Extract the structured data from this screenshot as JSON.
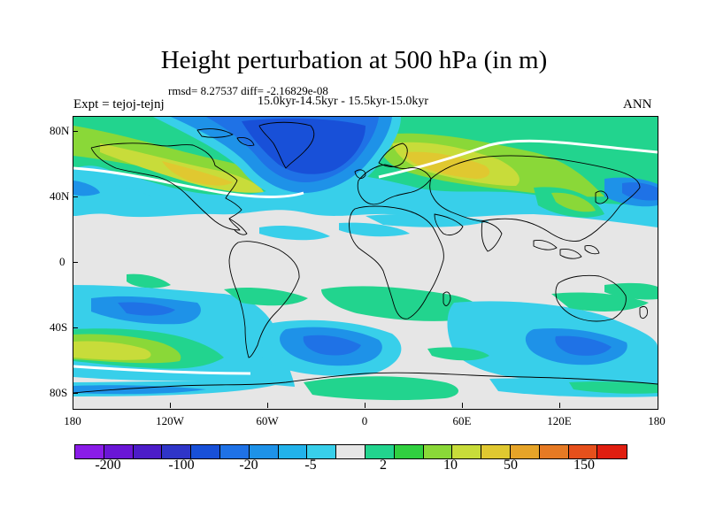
{
  "title": "Height perturbation at 500 hPa (in m)",
  "stats_line": "rmsd= 8.27537 diff= -2.16829e-08",
  "period_line": "15.0kyr-14.5kyr - 15.5kyr-15.0kyr",
  "experiment_label": "Expt = tejoj-tejnj",
  "season_label": "ANN",
  "latitude_labels": [
    "80N",
    "40N",
    "0",
    "40S",
    "80S"
  ],
  "longitude_labels": [
    "180",
    "120W",
    "60W",
    "0",
    "60E",
    "120E",
    "180"
  ],
  "colorbar": {
    "colors": [
      "#8a1ce8",
      "#6a16d6",
      "#4c1cc8",
      "#2f35c8",
      "#1850d8",
      "#1f72e6",
      "#1e92e8",
      "#22b2ea",
      "#38cfea",
      "#e6e6e6",
      "#22d48e",
      "#30d040",
      "#8ad838",
      "#c8dc3a",
      "#e0c830",
      "#e6a428",
      "#e67a24",
      "#e6501c",
      "#e01e10"
    ],
    "labels": [
      "-200",
      "-100",
      "-20",
      "-5",
      "2",
      "10",
      "50",
      "150"
    ]
  },
  "chart_data": {
    "type": "filled_contour_map",
    "title": "Height perturbation at 500 hPa (in m)",
    "subtitle": "15.0kyr-14.5kyr - 15.5kyr-15.0kyr",
    "rmsd": 8.27537,
    "diff": -2.16829e-08,
    "units": "m",
    "projection": "cylindrical equidistant",
    "lon_range": [
      -180,
      180
    ],
    "lat_range": [
      -90,
      90
    ],
    "contour_levels": [
      -200,
      -150,
      -100,
      -50,
      -20,
      -10,
      -5,
      -2,
      -1,
      1,
      2,
      5,
      10,
      20,
      50,
      100,
      150,
      200
    ],
    "features": [
      {
        "region": "Greenland / North Atlantic",
        "sign": "negative",
        "approx_min": -50
      },
      {
        "region": "Eurasia (central)",
        "sign": "positive",
        "approx_max": 50
      },
      {
        "region": "North America (Pacific side)",
        "sign": "positive",
        "approx_max": 20
      },
      {
        "region": "South Pacific",
        "sign": "positive",
        "approx_max": 20
      },
      {
        "region": "South Atlantic",
        "sign": "negative",
        "approx_min": -20
      },
      {
        "region": "Southern Indian Ocean",
        "sign": "negative",
        "approx_min": -20
      },
      {
        "region": "Tropics",
        "sign": "near zero",
        "approx_range": [
          -2,
          2
        ]
      }
    ]
  }
}
